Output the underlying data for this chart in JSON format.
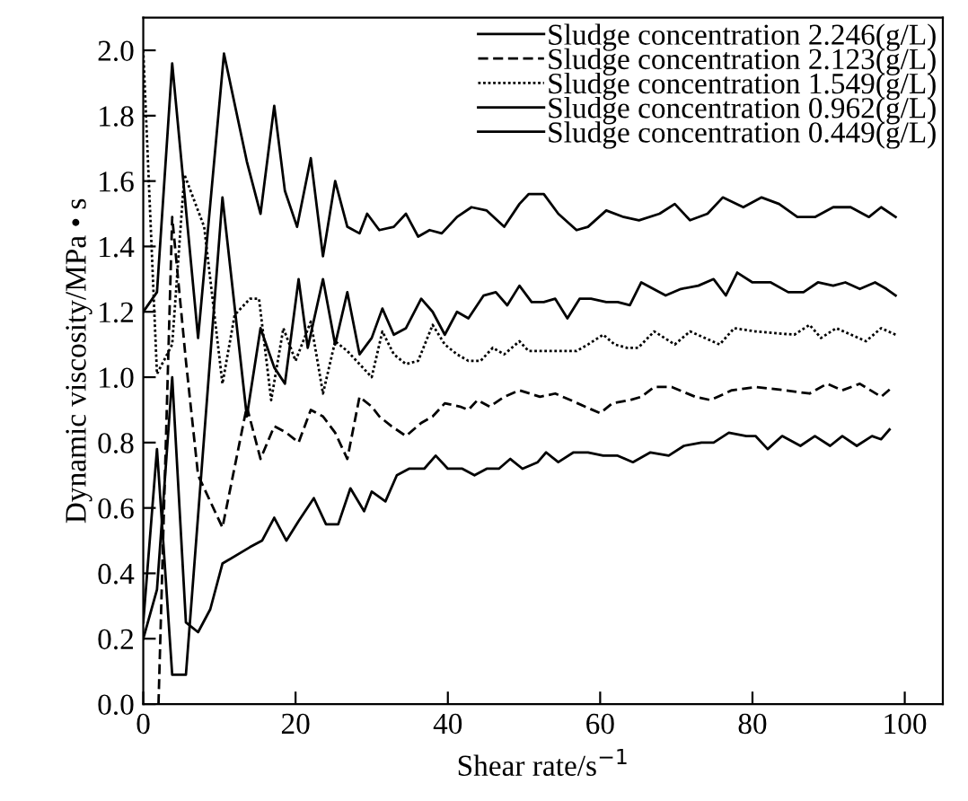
{
  "chart_data": {
    "type": "line",
    "xlabel": "Shear rate/s$^{−1}$",
    "ylabel": "Dynamic viscosity/MPa • s",
    "xlim": [
      0,
      105
    ],
    "ylim": [
      0,
      2.1
    ],
    "xticks": [
      0,
      20,
      40,
      60,
      80,
      100
    ],
    "yticks": [
      {
        "value": 0,
        "label": "0.0"
      },
      {
        "value": 0.2,
        "label": "0.2"
      },
      {
        "value": 0.4,
        "label": "0.4"
      },
      {
        "value": 0.6,
        "label": "0.6"
      },
      {
        "value": 0.8,
        "label": "0.8"
      },
      {
        "value": 1.0,
        "label": "1.0"
      },
      {
        "value": 1.2,
        "label": "1.2"
      },
      {
        "value": 1.4,
        "label": "1.4"
      },
      {
        "value": 1.6,
        "label": "1.6"
      },
      {
        "value": 1.8,
        "label": "1.8"
      },
      {
        "value": 2.0,
        "label": "2.0"
      }
    ],
    "grid": false,
    "legend": "top right",
    "marker": "none",
    "series": [
      {
        "name": "Sludge concentration 2.246(g/L)",
        "color": "#000000",
        "line_style": "solid",
        "x": [
          0,
          1.8,
          3.8,
          7.2,
          10.6,
          13.6,
          15.4,
          17.2,
          18.6,
          20.2,
          22,
          23.6,
          25.2,
          26.8,
          28.4,
          29.4,
          31,
          32.9,
          34.5,
          36.1,
          37.6,
          39.2,
          41.2,
          43.1,
          45.1,
          47.4,
          49.4,
          50.6,
          52.6,
          54.5,
          56.9,
          58.4,
          60.8,
          63.1,
          65.1,
          67.8,
          69.8,
          71.8,
          74.1,
          76.1,
          78.8,
          81.2,
          83.5,
          85.9,
          88.2,
          90.6,
          92.9,
          95.3,
          96.9,
          98.8
        ],
        "values": [
          1.2,
          1.26,
          1.96,
          1.12,
          1.99,
          1.66,
          1.5,
          1.83,
          1.57,
          1.46,
          1.67,
          1.37,
          1.6,
          1.46,
          1.44,
          1.5,
          1.45,
          1.46,
          1.5,
          1.43,
          1.45,
          1.44,
          1.49,
          1.52,
          1.51,
          1.46,
          1.53,
          1.56,
          1.56,
          1.5,
          1.45,
          1.46,
          1.51,
          1.49,
          1.48,
          1.5,
          1.53,
          1.48,
          1.5,
          1.55,
          1.52,
          1.55,
          1.53,
          1.49,
          1.49,
          1.52,
          1.52,
          1.49,
          1.52,
          1.49
        ]
      },
      {
        "name": "Sludge concentration 2.123(g/L)",
        "color": "#000000",
        "line_style": "dashed",
        "x": [
          2,
          3.8,
          5.6,
          7.2,
          10.4,
          13.6,
          15.4,
          17.2,
          18.8,
          20.4,
          22,
          23.6,
          25.2,
          26.8,
          28.4,
          30,
          31,
          32.6,
          34.5,
          36.5,
          38,
          39.6,
          41.6,
          42.7,
          43.9,
          45.5,
          47.4,
          49.4,
          52.1,
          54.1,
          56.1,
          58,
          60,
          61.6,
          63.9,
          65.4,
          67.1,
          69.4,
          72.5,
          74.5,
          77.3,
          80.4,
          84.3,
          87.5,
          89.8,
          91.8,
          94.1,
          96.9,
          98.4
        ],
        "values": [
          0,
          1.49,
          1.05,
          0.7,
          0.54,
          0.91,
          0.75,
          0.85,
          0.83,
          0.8,
          0.9,
          0.88,
          0.83,
          0.75,
          0.94,
          0.91,
          0.88,
          0.85,
          0.82,
          0.86,
          0.88,
          0.92,
          0.91,
          0.9,
          0.93,
          0.91,
          0.94,
          0.96,
          0.94,
          0.95,
          0.93,
          0.91,
          0.89,
          0.92,
          0.93,
          0.94,
          0.97,
          0.97,
          0.94,
          0.93,
          0.96,
          0.97,
          0.96,
          0.95,
          0.98,
          0.96,
          0.98,
          0.94,
          0.97
        ]
      },
      {
        "name": "Sludge concentration 1.549(g/L)",
        "color": "#000000",
        "line_style": "dotted",
        "x": [
          0,
          1.8,
          3.8,
          5.4,
          8,
          10.4,
          12,
          14,
          15.2,
          16.8,
          18.4,
          20,
          22,
          23.6,
          25.2,
          26.8,
          30,
          31.4,
          32.9,
          34.5,
          36.1,
          38,
          39.6,
          41.2,
          42.7,
          44.3,
          45.9,
          47.4,
          49.4,
          50.6,
          52.1,
          56.9,
          58.4,
          60.4,
          61.9,
          63.5,
          65,
          67.1,
          69.8,
          71.8,
          75.7,
          77.6,
          80.4,
          85.5,
          87.5,
          89,
          91,
          94.9,
          96.9,
          98.8
        ],
        "values": [
          2.0,
          1.01,
          1.1,
          1.62,
          1.46,
          0.98,
          1.19,
          1.24,
          1.24,
          0.93,
          1.15,
          1.05,
          1.17,
          0.95,
          1.11,
          1.08,
          1.0,
          1.14,
          1.07,
          1.04,
          1.05,
          1.16,
          1.1,
          1.07,
          1.05,
          1.05,
          1.09,
          1.07,
          1.11,
          1.08,
          1.08,
          1.08,
          1.1,
          1.13,
          1.1,
          1.09,
          1.09,
          1.14,
          1.1,
          1.14,
          1.1,
          1.15,
          1.14,
          1.13,
          1.16,
          1.12,
          1.15,
          1.11,
          1.15,
          1.13
        ]
      },
      {
        "name": "Sludge concentration 0.962(g/L)",
        "color": "#000000",
        "line_style": "solid",
        "x": [
          0,
          1.8,
          3.8,
          5.6,
          10.4,
          13.6,
          15.4,
          17.2,
          18.6,
          20.4,
          21.6,
          23.6,
          25.2,
          26.8,
          28.4,
          30,
          31.4,
          32.9,
          34.5,
          36.5,
          38,
          39.6,
          41.2,
          42.7,
          44.7,
          46.3,
          47.8,
          49.4,
          51,
          52.6,
          54.1,
          55.7,
          57.3,
          58.8,
          60.8,
          62.3,
          63.9,
          65.4,
          68.6,
          70.6,
          72.9,
          74.9,
          76.5,
          78,
          80,
          82.4,
          84.7,
          86.7,
          88.6,
          90.6,
          92.2,
          94.1,
          96.1,
          97.6,
          98.8
        ],
        "values": [
          0.25,
          0.78,
          0.09,
          0.09,
          1.55,
          0.88,
          1.15,
          1.03,
          0.98,
          1.3,
          1.09,
          1.3,
          1.1,
          1.26,
          1.07,
          1.12,
          1.21,
          1.13,
          1.15,
          1.24,
          1.2,
          1.13,
          1.2,
          1.18,
          1.25,
          1.26,
          1.22,
          1.28,
          1.23,
          1.23,
          1.24,
          1.18,
          1.24,
          1.24,
          1.23,
          1.23,
          1.22,
          1.29,
          1.25,
          1.27,
          1.28,
          1.3,
          1.25,
          1.32,
          1.29,
          1.29,
          1.26,
          1.26,
          1.29,
          1.28,
          1.29,
          1.27,
          1.29,
          1.27,
          1.25
        ]
      },
      {
        "name": "Sludge concentration 0.449(g/L)",
        "color": "#000000",
        "line_style": "solid",
        "x": [
          0,
          1.8,
          3.8,
          5.6,
          7.2,
          8.8,
          10.4,
          14,
          15.6,
          17.2,
          18.8,
          20.4,
          22.4,
          24,
          25.6,
          27.2,
          29,
          30,
          31.8,
          33.3,
          34.9,
          36.9,
          38.4,
          40,
          41.9,
          43.5,
          45.1,
          46.7,
          48.2,
          49.8,
          51.8,
          52.9,
          54.5,
          56.5,
          58.4,
          60.4,
          62.3,
          64.3,
          66.6,
          69,
          71,
          73.3,
          74.9,
          76.9,
          79.2,
          80.4,
          82,
          83.9,
          86.3,
          88.2,
          90.2,
          91.8,
          93.7,
          95.7,
          96.9,
          98
        ],
        "values": [
          0.2,
          0.35,
          1.0,
          0.25,
          0.22,
          0.29,
          0.43,
          0.48,
          0.5,
          0.57,
          0.5,
          0.56,
          0.63,
          0.55,
          0.55,
          0.66,
          0.59,
          0.65,
          0.62,
          0.7,
          0.72,
          0.72,
          0.76,
          0.72,
          0.72,
          0.7,
          0.72,
          0.72,
          0.75,
          0.72,
          0.74,
          0.77,
          0.74,
          0.77,
          0.77,
          0.76,
          0.76,
          0.74,
          0.77,
          0.76,
          0.79,
          0.8,
          0.8,
          0.83,
          0.82,
          0.82,
          0.78,
          0.82,
          0.79,
          0.82,
          0.79,
          0.82,
          0.79,
          0.82,
          0.81,
          0.84
        ]
      }
    ]
  }
}
